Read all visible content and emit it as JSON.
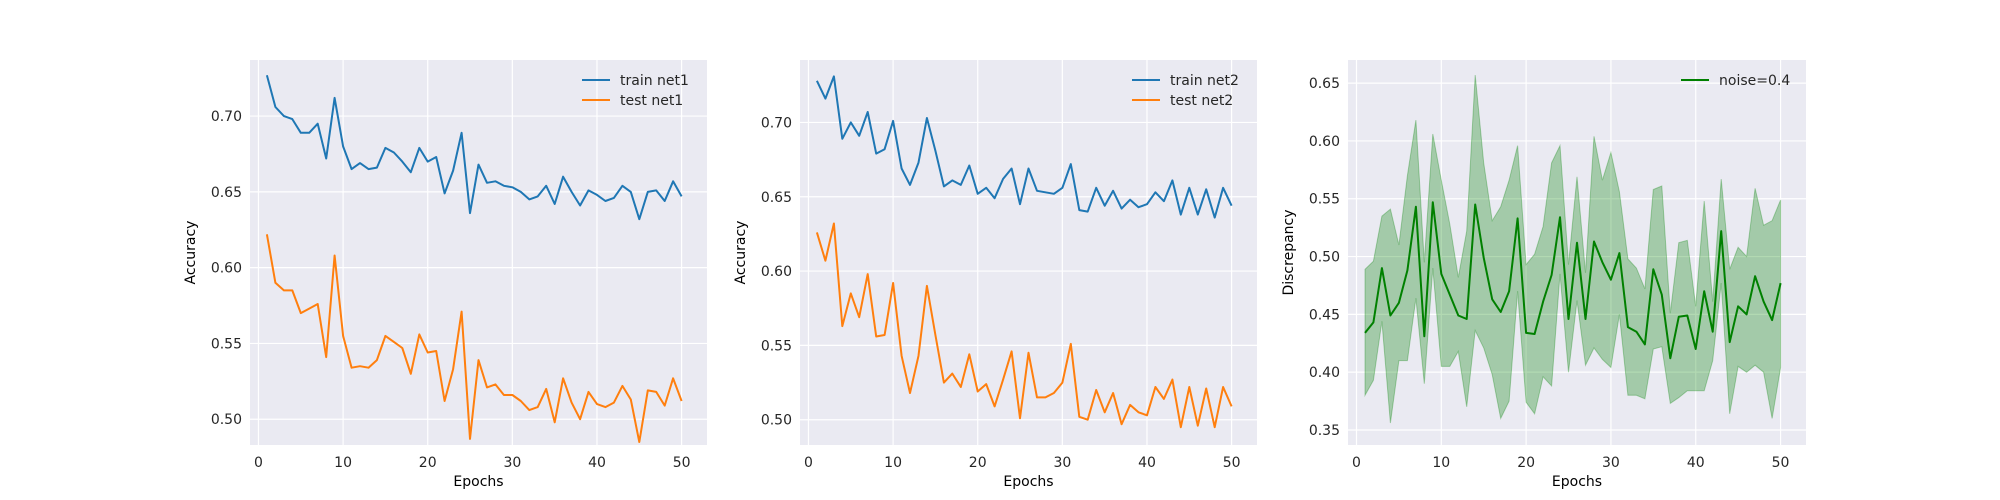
{
  "chart_data": [
    {
      "type": "line",
      "xlabel": "Epochs",
      "ylabel": "Accuracy",
      "xlim": [
        -1,
        53
      ],
      "ylim": [
        0.483,
        0.737
      ],
      "xticks": [
        0,
        10,
        20,
        30,
        40,
        50
      ],
      "yticks": [
        0.5,
        0.55,
        0.6,
        0.65,
        0.7
      ],
      "ytick_labels": [
        "0.50",
        "0.55",
        "0.60",
        "0.65",
        "0.70"
      ],
      "grid": true,
      "legend_position": "top-right",
      "x": [
        1,
        2,
        3,
        4,
        5,
        6,
        7,
        8,
        9,
        10,
        11,
        12,
        13,
        14,
        15,
        16,
        17,
        18,
        19,
        20,
        21,
        22,
        23,
        24,
        25,
        26,
        27,
        28,
        29,
        30,
        31,
        32,
        33,
        34,
        35,
        36,
        37,
        38,
        39,
        40,
        41,
        42,
        43,
        44,
        45,
        46,
        47,
        48,
        49,
        50
      ],
      "series": [
        {
          "name": "train net1",
          "color": "#1f77b4",
          "values": [
            0.727,
            0.706,
            0.7,
            0.698,
            0.689,
            0.689,
            0.695,
            0.672,
            0.712,
            0.68,
            0.665,
            0.669,
            0.665,
            0.666,
            0.679,
            0.676,
            0.67,
            0.663,
            0.679,
            0.67,
            0.673,
            0.649,
            0.664,
            0.689,
            0.636,
            0.668,
            0.656,
            0.657,
            0.654,
            0.653,
            0.65,
            0.645,
            0.647,
            0.654,
            0.642,
            0.66,
            0.65,
            0.641,
            0.651,
            0.648,
            0.644,
            0.646,
            0.654,
            0.65,
            0.632,
            0.65,
            0.651,
            0.644,
            0.657,
            0.647
          ]
        },
        {
          "name": "test net1",
          "color": "#ff7f0e",
          "values": [
            0.622,
            0.59,
            0.585,
            0.585,
            0.57,
            0.573,
            0.576,
            0.541,
            0.608,
            0.555,
            0.534,
            0.535,
            0.534,
            0.539,
            0.555,
            0.551,
            0.547,
            0.53,
            0.556,
            0.544,
            0.545,
            0.512,
            0.533,
            0.571,
            0.487,
            0.539,
            0.521,
            0.523,
            0.516,
            0.516,
            0.512,
            0.506,
            0.508,
            0.52,
            0.498,
            0.527,
            0.511,
            0.5,
            0.518,
            0.51,
            0.508,
            0.511,
            0.522,
            0.513,
            0.485,
            0.519,
            0.518,
            0.509,
            0.527,
            0.512
          ]
        }
      ]
    },
    {
      "type": "line",
      "xlabel": "Epochs",
      "ylabel": "Accuracy",
      "xlim": [
        -1,
        53
      ],
      "ylim": [
        0.483,
        0.742
      ],
      "xticks": [
        0,
        10,
        20,
        30,
        40,
        50
      ],
      "yticks": [
        0.5,
        0.55,
        0.6,
        0.65,
        0.7
      ],
      "ytick_labels": [
        "0.50",
        "0.55",
        "0.60",
        "0.65",
        "0.70"
      ],
      "grid": true,
      "legend_position": "top-right",
      "x": [
        1,
        2,
        3,
        4,
        5,
        6,
        7,
        8,
        9,
        10,
        11,
        12,
        13,
        14,
        15,
        16,
        17,
        18,
        19,
        20,
        21,
        22,
        23,
        24,
        25,
        26,
        27,
        28,
        29,
        30,
        31,
        32,
        33,
        34,
        35,
        36,
        37,
        38,
        39,
        40,
        41,
        42,
        43,
        44,
        45,
        46,
        47,
        48,
        49,
        50
      ],
      "series": [
        {
          "name": "train net2",
          "color": "#1f77b4",
          "values": [
            0.728,
            0.716,
            0.731,
            0.689,
            0.7,
            0.691,
            0.707,
            0.679,
            0.682,
            0.701,
            0.669,
            0.658,
            0.673,
            0.703,
            0.681,
            0.657,
            0.661,
            0.658,
            0.671,
            0.652,
            0.656,
            0.649,
            0.662,
            0.669,
            0.645,
            0.669,
            0.654,
            0.653,
            0.652,
            0.656,
            0.672,
            0.641,
            0.64,
            0.656,
            0.644,
            0.654,
            0.642,
            0.648,
            0.643,
            0.645,
            0.653,
            0.647,
            0.661,
            0.638,
            0.656,
            0.638,
            0.655,
            0.636,
            0.656,
            0.644
          ]
        },
        {
          "name": "test net2",
          "color": "#ff7f0e",
          "values": [
            0.626,
            0.607,
            0.632,
            0.563,
            0.585,
            0.569,
            0.598,
            0.556,
            0.557,
            0.592,
            0.543,
            0.518,
            0.543,
            0.59,
            0.557,
            0.525,
            0.531,
            0.522,
            0.544,
            0.519,
            0.524,
            0.509,
            0.527,
            0.546,
            0.501,
            0.545,
            0.515,
            0.515,
            0.518,
            0.525,
            0.551,
            0.502,
            0.5,
            0.52,
            0.505,
            0.518,
            0.497,
            0.51,
            0.505,
            0.503,
            0.522,
            0.514,
            0.527,
            0.495,
            0.522,
            0.496,
            0.521,
            0.495,
            0.522,
            0.509
          ]
        }
      ]
    },
    {
      "type": "line",
      "xlabel": "Epochs",
      "ylabel": "Discrepancy",
      "xlim": [
        -1,
        53
      ],
      "ylim": [
        0.337,
        0.67
      ],
      "xticks": [
        0,
        10,
        20,
        30,
        40,
        50
      ],
      "yticks": [
        0.35,
        0.4,
        0.45,
        0.5,
        0.55,
        0.6,
        0.65
      ],
      "ytick_labels": [
        "0.35",
        "0.40",
        "0.45",
        "0.50",
        "0.55",
        "0.60",
        "0.65"
      ],
      "grid": true,
      "legend_position": "top-right",
      "x": [
        1,
        2,
        3,
        4,
        5,
        6,
        7,
        8,
        9,
        10,
        11,
        12,
        13,
        14,
        15,
        16,
        17,
        18,
        19,
        20,
        21,
        22,
        23,
        24,
        25,
        26,
        27,
        28,
        29,
        30,
        31,
        32,
        33,
        34,
        35,
        36,
        37,
        38,
        39,
        40,
        41,
        42,
        43,
        44,
        45,
        46,
        47,
        48,
        49,
        50
      ],
      "series": [
        {
          "name": "noise=0.4",
          "color": "#008000",
          "values": [
            0.434,
            0.443,
            0.49,
            0.449,
            0.46,
            0.488,
            0.543,
            0.431,
            0.547,
            0.485,
            0.467,
            0.449,
            0.446,
            0.545,
            0.499,
            0.463,
            0.452,
            0.47,
            0.533,
            0.434,
            0.433,
            0.461,
            0.484,
            0.534,
            0.446,
            0.512,
            0.446,
            0.513,
            0.495,
            0.48,
            0.503,
            0.439,
            0.435,
            0.424,
            0.489,
            0.467,
            0.412,
            0.448,
            0.449,
            0.42,
            0.47,
            0.435,
            0.522,
            0.426,
            0.457,
            0.45,
            0.483,
            0.461,
            0.445,
            0.477
          ],
          "band_lower": [
            0.38,
            0.393,
            0.444,
            0.356,
            0.41,
            0.41,
            0.464,
            0.39,
            0.49,
            0.405,
            0.405,
            0.418,
            0.37,
            0.436,
            0.421,
            0.398,
            0.36,
            0.375,
            0.47,
            0.374,
            0.364,
            0.396,
            0.388,
            0.485,
            0.4,
            0.462,
            0.406,
            0.421,
            0.411,
            0.404,
            0.45,
            0.38,
            0.38,
            0.377,
            0.42,
            0.422,
            0.373,
            0.378,
            0.384,
            0.384,
            0.384,
            0.41,
            0.477,
            0.364,
            0.405,
            0.4,
            0.406,
            0.4,
            0.36,
            0.404
          ],
          "band_upper": [
            0.489,
            0.496,
            0.535,
            0.541,
            0.51,
            0.57,
            0.618,
            0.495,
            0.606,
            0.566,
            0.528,
            0.482,
            0.522,
            0.657,
            0.581,
            0.531,
            0.543,
            0.566,
            0.596,
            0.493,
            0.502,
            0.526,
            0.581,
            0.596,
            0.493,
            0.569,
            0.486,
            0.604,
            0.566,
            0.59,
            0.556,
            0.498,
            0.49,
            0.472,
            0.558,
            0.561,
            0.451,
            0.512,
            0.514,
            0.457,
            0.548,
            0.461,
            0.567,
            0.489,
            0.508,
            0.5,
            0.559,
            0.527,
            0.531,
            0.549
          ]
        }
      ]
    }
  ]
}
